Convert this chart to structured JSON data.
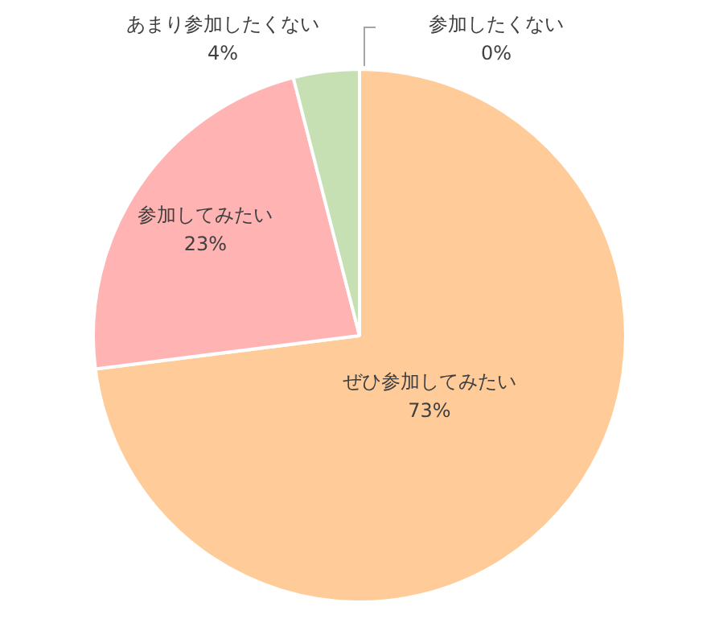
{
  "chart_data": {
    "type": "pie",
    "categories": [
      "ぜひ参加してみたい",
      "参加してみたい",
      "あまり参加したくない",
      "参加したくない"
    ],
    "values": [
      73,
      23,
      4,
      0
    ],
    "colors": [
      "#ffcc99",
      "#ffb3b3",
      "#c6e0b4",
      "#a5a5a5"
    ],
    "value_labels": [
      "73%",
      "23%",
      "4%",
      "0%"
    ],
    "legend": false
  }
}
